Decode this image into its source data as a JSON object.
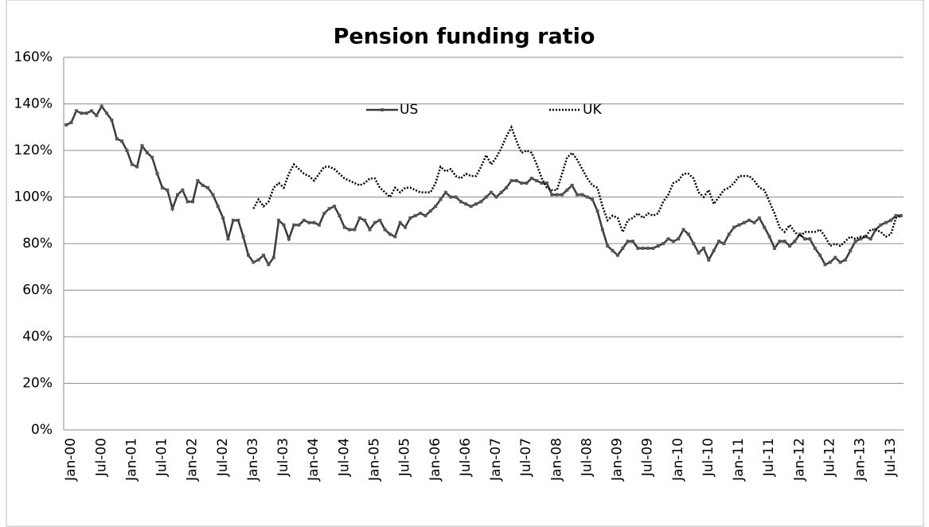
{
  "chart_data": {
    "type": "line",
    "title": "Pension funding ratio",
    "categories": [
      "Jan-00",
      null,
      null,
      null,
      null,
      null,
      "Jul-00",
      null,
      null,
      null,
      null,
      null,
      "Jan-01",
      null,
      null,
      null,
      null,
      null,
      "Jul-01",
      null,
      null,
      null,
      null,
      null,
      "Jan-02",
      null,
      null,
      null,
      null,
      null,
      "Jul-02",
      null,
      null,
      null,
      null,
      null,
      "Jan-03",
      null,
      null,
      null,
      null,
      null,
      "Jul-03",
      null,
      null,
      null,
      null,
      null,
      "Jan-04",
      null,
      null,
      null,
      null,
      null,
      "Jul-04",
      null,
      null,
      null,
      null,
      null,
      "Jan-05",
      null,
      null,
      null,
      null,
      null,
      "Jul-05",
      null,
      null,
      null,
      null,
      null,
      "Jan-06",
      null,
      null,
      null,
      null,
      null,
      "Jul-06",
      null,
      null,
      null,
      null,
      null,
      "Jan-07",
      null,
      null,
      null,
      null,
      null,
      "Jul-07",
      null,
      null,
      null,
      null,
      null,
      "Jan-08",
      null,
      null,
      null,
      null,
      null,
      "Jul-08",
      null,
      null,
      null,
      null,
      null,
      "Jan-09",
      null,
      null,
      null,
      null,
      null,
      "Jul-09",
      null,
      null,
      null,
      null,
      null,
      "Jan-10",
      null,
      null,
      null,
      null,
      null,
      "Jul-10",
      null,
      null,
      null,
      null,
      null,
      "Jan-11",
      null,
      null,
      null,
      null,
      null,
      "Jul-11",
      null,
      null,
      null,
      null,
      null,
      "Jan-12",
      null,
      null,
      null,
      null,
      null,
      "Jul-12",
      null,
      null,
      null,
      null,
      null,
      "Jan-13",
      null,
      null,
      null,
      null,
      null,
      "Jul-13",
      null,
      null,
      null
    ],
    "series": [
      {
        "name": "US",
        "color": "#3a3a3a",
        "style": "solid",
        "markers": true,
        "values": [
          131,
          132,
          137,
          136,
          136,
          137,
          135,
          139,
          136,
          133,
          125,
          124,
          120,
          114,
          113,
          122,
          119,
          117,
          110,
          104,
          103,
          95,
          101,
          103,
          98,
          98,
          107,
          105,
          104,
          101,
          96,
          91,
          82,
          90,
          90,
          83,
          75,
          72,
          73,
          75,
          71,
          74,
          90,
          88,
          82,
          88,
          88,
          90,
          89,
          89,
          88,
          93,
          95,
          96,
          92,
          87,
          86,
          86,
          91,
          90,
          86,
          89,
          90,
          86,
          84,
          83,
          89,
          87,
          91,
          92,
          93,
          92,
          94,
          96,
          99,
          102,
          100,
          100,
          98,
          97,
          96,
          97,
          98,
          100,
          102,
          100,
          102,
          104,
          107,
          107,
          106,
          106,
          108,
          107,
          106,
          106,
          101,
          101,
          101,
          103,
          105,
          101,
          101,
          100,
          99,
          94,
          86,
          79,
          77,
          75,
          78,
          81,
          81,
          78,
          78,
          78,
          78,
          79,
          80,
          82,
          81,
          82,
          86,
          84,
          80,
          76,
          78,
          73,
          77,
          81,
          80,
          84,
          87,
          88,
          89,
          90,
          89,
          91,
          87,
          83,
          78,
          81,
          81,
          79,
          81,
          84,
          82,
          82,
          78,
          75,
          71,
          72,
          74,
          72,
          73,
          77,
          81,
          82,
          83,
          82,
          86,
          88,
          89,
          90,
          92,
          92
        ]
      },
      {
        "name": "UK",
        "color": "#000000",
        "style": "dotted",
        "markers": false,
        "values": [
          null,
          null,
          null,
          null,
          null,
          null,
          null,
          null,
          null,
          null,
          null,
          null,
          null,
          null,
          null,
          null,
          null,
          null,
          null,
          null,
          null,
          null,
          null,
          null,
          null,
          null,
          null,
          null,
          null,
          null,
          null,
          null,
          null,
          null,
          null,
          null,
          null,
          95,
          99,
          96,
          98,
          104,
          106,
          104,
          110,
          114,
          112,
          110,
          109,
          107,
          110,
          113,
          113,
          112,
          110,
          108,
          107,
          106,
          105,
          106,
          108,
          108,
          104,
          102,
          100,
          104,
          102,
          104,
          104,
          103,
          102,
          102,
          102,
          106,
          113,
          111,
          112,
          109,
          108,
          110,
          109,
          109,
          113,
          118,
          114,
          117,
          121,
          126,
          130,
          124,
          119,
          120,
          119,
          114,
          108,
          104,
          103,
          103,
          110,
          117,
          119,
          116,
          112,
          108,
          105,
          104,
          96,
          90,
          92,
          91,
          85,
          90,
          91,
          93,
          91,
          93,
          92,
          93,
          98,
          101,
          106,
          107,
          110,
          110,
          108,
          102,
          100,
          103,
          97,
          100,
          103,
          104,
          106,
          109,
          109,
          109,
          107,
          104,
          103,
          98,
          93,
          87,
          85,
          88,
          85,
          83,
          85,
          85,
          85,
          86,
          83,
          79,
          80,
          79,
          81,
          83,
          82,
          83,
          83,
          86,
          86,
          85,
          83,
          84,
          91,
          92
        ]
      }
    ],
    "ylim": [
      0,
      160
    ],
    "yticks": [
      {
        "value": 0,
        "label": "0%"
      },
      {
        "value": 20,
        "label": "20%"
      },
      {
        "value": 40,
        "label": "40%"
      },
      {
        "value": 60,
        "label": "60%"
      },
      {
        "value": 80,
        "label": "80%"
      },
      {
        "value": 100,
        "label": "100%"
      },
      {
        "value": 120,
        "label": "120%"
      },
      {
        "value": 140,
        "label": "140%"
      },
      {
        "value": 160,
        "label": "160%"
      }
    ],
    "grid": true,
    "legend": "top"
  }
}
